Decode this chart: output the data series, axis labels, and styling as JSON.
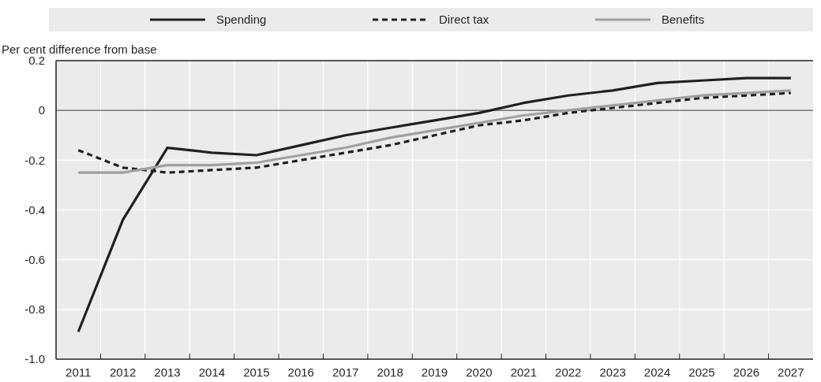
{
  "chart_data": {
    "type": "line",
    "ylabel": "Per cent difference from base",
    "categories": [
      "2011",
      "2012",
      "2013",
      "2014",
      "2015",
      "2016",
      "2017",
      "2018",
      "2019",
      "2020",
      "2021",
      "2022",
      "2023",
      "2024",
      "2025",
      "2026",
      "2027"
    ],
    "series": [
      {
        "name": "Spending",
        "color": "#231f20",
        "line_style": "solid",
        "values": [
          -0.89,
          -0.44,
          -0.15,
          -0.17,
          -0.18,
          -0.14,
          -0.1,
          -0.07,
          -0.04,
          -0.01,
          0.03,
          0.06,
          0.08,
          0.11,
          0.12,
          0.13,
          0.13
        ]
      },
      {
        "name": "Direct tax",
        "color": "#231f20",
        "line_style": "dashed",
        "values": [
          -0.16,
          -0.23,
          -0.25,
          -0.24,
          -0.23,
          -0.2,
          -0.17,
          -0.14,
          -0.1,
          -0.06,
          -0.04,
          -0.01,
          0.01,
          0.03,
          0.05,
          0.06,
          0.07
        ]
      },
      {
        "name": "Benefits",
        "color": "#a0a0a0",
        "line_style": "solid",
        "values": [
          -0.25,
          -0.25,
          -0.22,
          -0.22,
          -0.21,
          -0.18,
          -0.15,
          -0.11,
          -0.08,
          -0.05,
          -0.02,
          0,
          0.02,
          0.04,
          0.06,
          0.07,
          0.08
        ]
      }
    ],
    "ylim": [
      -1,
      0.2
    ],
    "yticks": [
      0.2,
      0,
      -0.2,
      -0.4,
      -0.6,
      -0.8,
      {
        "value": -1,
        "label": "-1.0"
      }
    ],
    "grid": true,
    "legend": "top",
    "marker": "none"
  }
}
